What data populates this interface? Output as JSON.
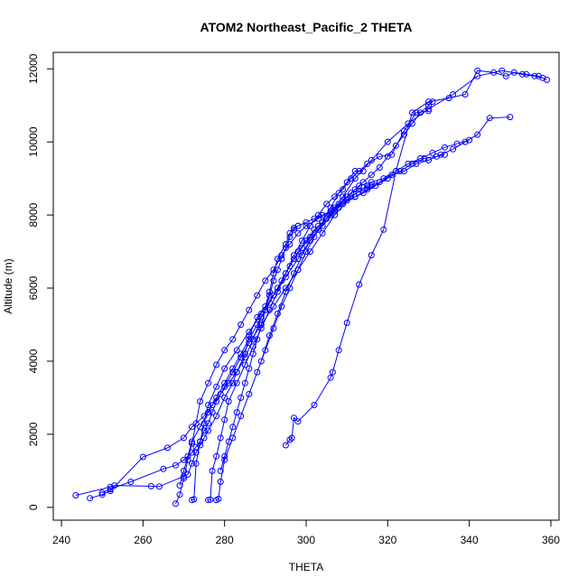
{
  "chart_data": {
    "type": "line",
    "title": "ATOM2 Northeast_Pacific_2 THETA",
    "xlabel": "THETA",
    "ylabel": "Altitude (m)",
    "xlim": [
      238,
      362
    ],
    "ylim": [
      -350,
      12450
    ],
    "xticks": [
      240,
      260,
      280,
      300,
      320,
      340,
      360
    ],
    "yticks": [
      0,
      2000,
      4000,
      6000,
      8000,
      10000,
      12000
    ],
    "grid": false,
    "legend": "none",
    "color": "#0000ff",
    "series": [
      {
        "x": [
          243.5,
          252,
          253,
          262,
          264,
          270,
          271,
          272,
          273,
          274,
          275,
          276,
          278,
          280,
          282,
          283,
          285,
          286,
          288,
          290,
          291,
          292,
          293,
          295,
          296,
          297,
          298
        ],
        "y": [
          330,
          560,
          600,
          580,
          570,
          850,
          900,
          1200,
          1500,
          1700,
          1900,
          2100,
          2500,
          3000,
          3400,
          3700,
          4200,
          4700,
          5200,
          5500,
          5900,
          6400,
          6800,
          7200,
          7500,
          7650,
          7700
        ]
      },
      {
        "x": [
          247,
          250,
          252,
          260,
          266,
          270,
          272,
          275,
          277,
          279,
          281,
          283,
          285,
          287,
          289,
          291,
          293,
          295,
          297,
          299,
          301,
          303,
          305,
          307,
          309,
          311,
          313,
          315,
          316
        ],
        "y": [
          250,
          350,
          450,
          1380,
          1630,
          1900,
          2200,
          2500,
          2800,
          3100,
          3400,
          3700,
          4100,
          4600,
          5200,
          5600,
          6000,
          6400,
          6800,
          7100,
          7400,
          7700,
          7900,
          8150,
          8400,
          8600,
          8700,
          8750,
          8800
        ]
      },
      {
        "x": [
          250,
          252,
          257,
          265,
          268,
          270,
          272,
          273,
          274,
          275,
          276,
          277,
          278,
          280,
          282,
          284,
          286,
          289,
          292,
          295,
          298,
          301,
          304,
          307,
          311,
          315
        ],
        "y": [
          400,
          500,
          700,
          1050,
          1150,
          1300,
          1500,
          1650,
          1800,
          2100,
          2300,
          2600,
          2900,
          3300,
          3700,
          4100,
          4500,
          5000,
          5500,
          6000,
          6500,
          7000,
          7500,
          8000,
          8500,
          8800
        ]
      },
      {
        "x": [
          268,
          269,
          270,
          271,
          272,
          273,
          274,
          276,
          278,
          280,
          282,
          284,
          286,
          288,
          290,
          292,
          294,
          296,
          298,
          300,
          303,
          306,
          309,
          312,
          315,
          318,
          321,
          324,
          327,
          330,
          333,
          336,
          339,
          342,
          345,
          350
        ],
        "y": [
          100,
          350,
          800,
          1300,
          1750,
          2300,
          2900,
          3400,
          3900,
          4300,
          4600,
          5000,
          5400,
          5800,
          6200,
          6500,
          6900,
          7200,
          7500,
          7700,
          7900,
          8100,
          8300,
          8500,
          8700,
          8900,
          9100,
          9200,
          9400,
          9500,
          9650,
          9800,
          10000,
          10200,
          10650,
          10680
        ]
      },
      {
        "x": [
          269,
          270,
          271,
          272,
          274,
          276,
          278,
          280,
          282,
          284,
          286,
          288,
          290,
          292,
          294,
          296,
          298,
          300,
          302,
          304,
          306,
          308,
          310,
          312,
          314,
          317,
          320,
          323,
          326,
          329,
          332,
          334
        ],
        "y": [
          600,
          1000,
          1400,
          1800,
          2200,
          2600,
          3000,
          3400,
          3800,
          4200,
          4600,
          5000,
          5400,
          5800,
          6200,
          6600,
          7000,
          7300,
          7600,
          7800,
          8000,
          8200,
          8400,
          8500,
          8600,
          8800,
          9000,
          9200,
          9400,
          9550,
          9600,
          9650
        ]
      },
      {
        "x": [
          272,
          272.5,
          273,
          274,
          275,
          276,
          278,
          280,
          283,
          286,
          289,
          292,
          295,
          298,
          301,
          304,
          307,
          310,
          313,
          316,
          319,
          322,
          325,
          328,
          331,
          334,
          337,
          340
        ],
        "y": [
          200,
          220,
          1200,
          1800,
          2300,
          2800,
          3300,
          3800,
          4300,
          4800,
          5300,
          5800,
          6300,
          6800,
          7300,
          7700,
          8100,
          8500,
          8800,
          8900,
          9000,
          9200,
          9400,
          9550,
          9700,
          9850,
          9950,
          10050
        ]
      },
      {
        "x": [
          276,
          276.5,
          277,
          278,
          279,
          280,
          281,
          283,
          285,
          287,
          289,
          291,
          293,
          295,
          297,
          299,
          301,
          303,
          305,
          307,
          309,
          311,
          313,
          315,
          318,
          321,
          324,
          327,
          330
        ],
        "y": [
          200,
          210,
          1000,
          1400,
          1900,
          2400,
          2900,
          3400,
          3900,
          4400,
          4900,
          5400,
          5900,
          6400,
          6900,
          7300,
          7700,
          8000,
          8300,
          8500,
          8700,
          9000,
          9200,
          9400,
          9600,
          9650,
          10300,
          10800,
          10850
        ]
      },
      {
        "x": [
          278,
          278.5,
          279,
          280,
          282,
          284,
          286,
          288,
          290,
          292,
          294,
          296,
          298,
          300,
          302,
          304,
          306,
          308,
          310,
          312,
          314
        ],
        "y": [
          200,
          230,
          700,
          1300,
          1900,
          2500,
          3100,
          3700,
          4300,
          4900,
          5500,
          6000,
          6500,
          7000,
          7400,
          7800,
          8200,
          8600,
          8900,
          9200,
          9200
        ]
      },
      {
        "x": [
          279,
          280,
          281,
          282,
          283,
          284,
          285,
          286,
          287,
          288,
          289,
          290,
          291,
          292,
          293,
          294,
          295,
          296,
          297,
          298,
          300,
          302,
          304,
          306,
          308,
          310,
          312,
          314,
          316,
          318,
          320,
          322,
          324,
          326,
          328,
          330,
          331
        ],
        "y": [
          1000,
          1400,
          1800,
          2200,
          2600,
          3000,
          3400,
          3800,
          4200,
          4600,
          5000,
          5400,
          5800,
          6200,
          6500,
          6800,
          7100,
          7400,
          7600,
          7700,
          7800,
          7900,
          8000,
          8100,
          8300,
          8500,
          8700,
          8900,
          9100,
          9300,
          9600,
          9900,
          10200,
          10500,
          10800,
          11000,
          11100
        ]
      },
      {
        "x": [
          289,
          291,
          293,
          295,
          297,
          299,
          301,
          303,
          305,
          307,
          309,
          312,
          316,
          320,
          325,
          330,
          336,
          342,
          348,
          353,
          356,
          358
        ],
        "y": [
          4000,
          4700,
          5300,
          5900,
          6400,
          6900,
          7300,
          7600,
          7900,
          8200,
          8500,
          9000,
          9500,
          10000,
          10500,
          10900,
          11300,
          11800,
          11950,
          11850,
          11800,
          11750
        ]
      },
      {
        "x": [
          295,
          296,
          296.5,
          297,
          298,
          302,
          306,
          306.5,
          308,
          310,
          313,
          316,
          319,
          322,
          326,
          330,
          335,
          339,
          342,
          346,
          349,
          351,
          354,
          357,
          359
        ],
        "y": [
          1700,
          1850,
          1900,
          2450,
          2350,
          2800,
          3550,
          3700,
          4300,
          5050,
          6100,
          6900,
          7600,
          9200,
          10800,
          11100,
          11200,
          11300,
          11950,
          11900,
          11800,
          11900,
          11850,
          11800,
          11700
        ]
      }
    ]
  }
}
